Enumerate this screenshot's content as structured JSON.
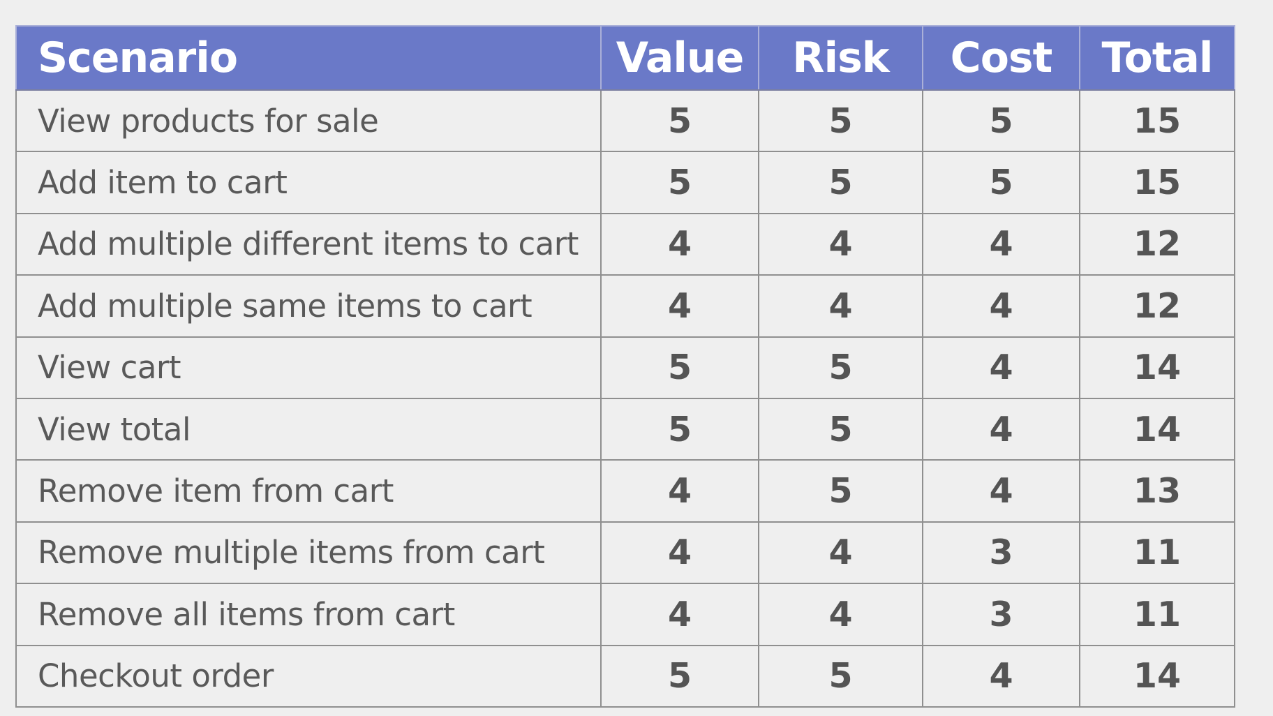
{
  "table": {
    "headers": {
      "scenario": "Scenario",
      "value": "Value",
      "risk": "Risk",
      "cost": "Cost",
      "total": "Total"
    },
    "rows": [
      {
        "scenario": "View products for sale",
        "value": "5",
        "risk": "5",
        "cost": "5",
        "total": "15"
      },
      {
        "scenario": "Add item to cart",
        "value": "5",
        "risk": "5",
        "cost": "5",
        "total": "15"
      },
      {
        "scenario": "Add multiple different items to cart",
        "value": "4",
        "risk": "4",
        "cost": "4",
        "total": "12"
      },
      {
        "scenario": "Add multiple same items to cart",
        "value": "4",
        "risk": "4",
        "cost": "4",
        "total": "12"
      },
      {
        "scenario": "View cart",
        "value": "5",
        "risk": "5",
        "cost": "4",
        "total": "14"
      },
      {
        "scenario": "View total",
        "value": "5",
        "risk": "5",
        "cost": "4",
        "total": "14"
      },
      {
        "scenario": "Remove item from cart",
        "value": "4",
        "risk": "5",
        "cost": "4",
        "total": "13"
      },
      {
        "scenario": "Remove multiple items from cart",
        "value": "4",
        "risk": "4",
        "cost": "3",
        "total": "11"
      },
      {
        "scenario": "Remove all items from cart",
        "value": "4",
        "risk": "4",
        "cost": "3",
        "total": "11"
      },
      {
        "scenario": "Checkout order",
        "value": "5",
        "risk": "5",
        "cost": "4",
        "total": "14"
      }
    ]
  },
  "colors": {
    "header_background": "#6a79c8",
    "header_text": "#ffffff",
    "cell_background": "#efefef",
    "cell_text": "#595959",
    "border": "#8f8f8f"
  }
}
